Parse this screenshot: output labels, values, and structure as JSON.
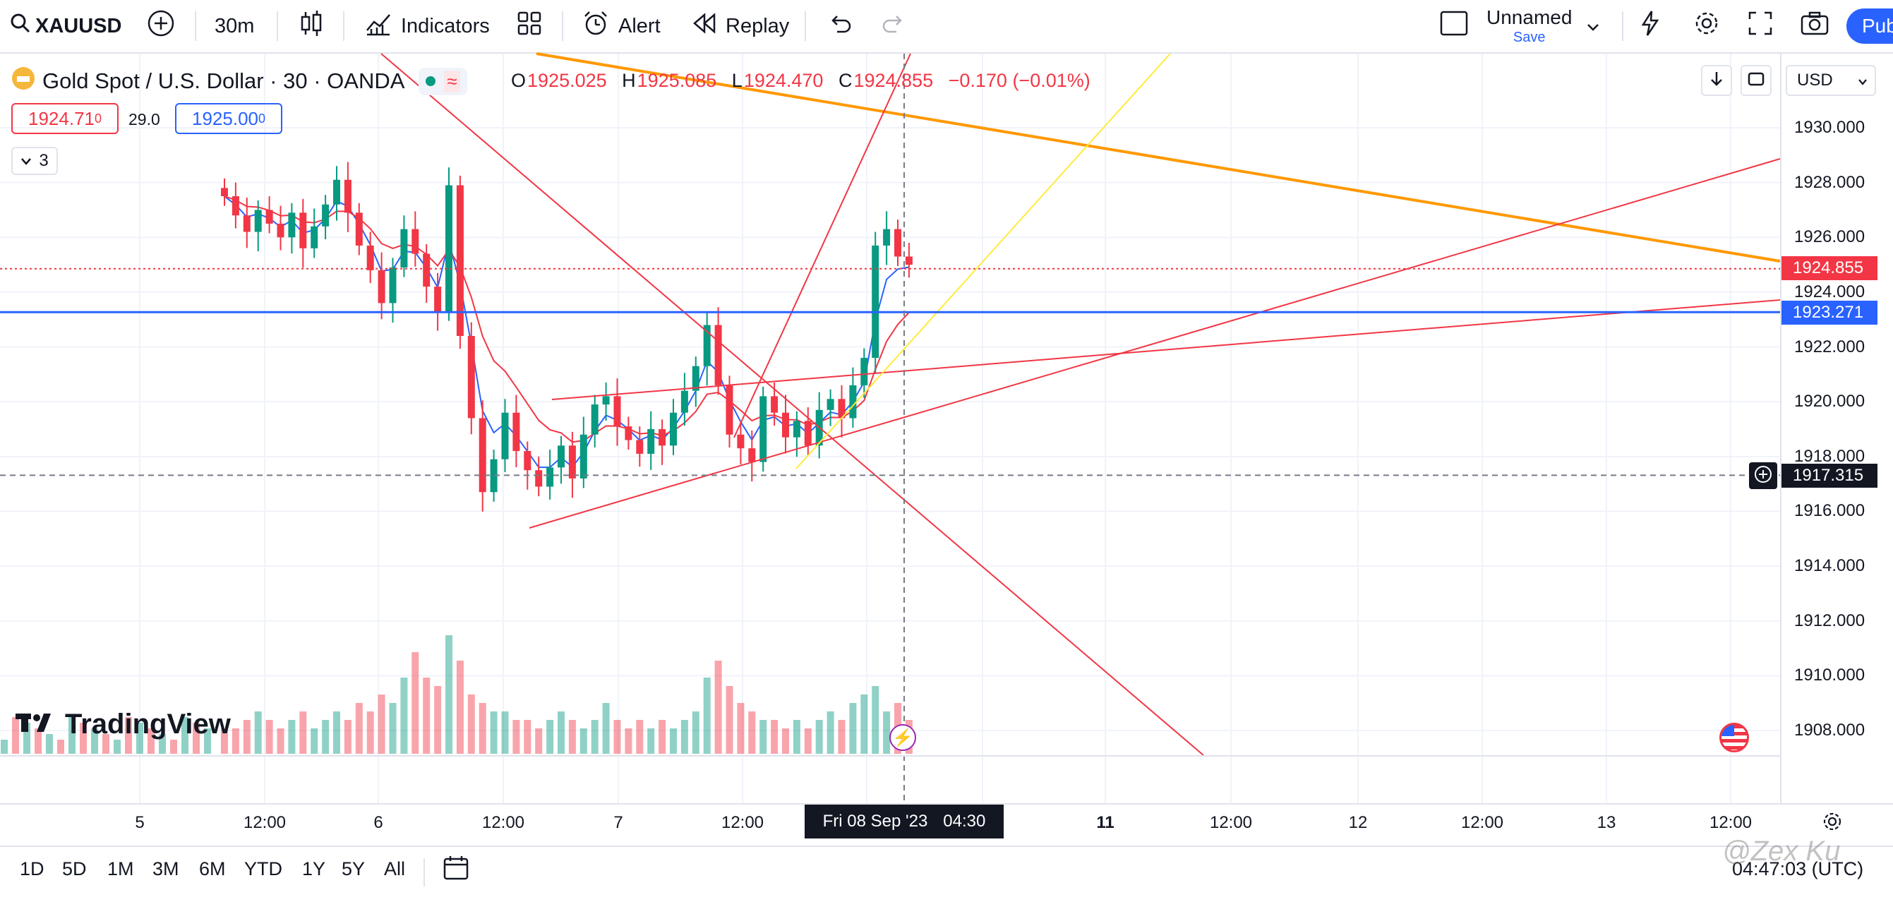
{
  "toolbar": {
    "symbol": "XAUUSD",
    "interval": "30m",
    "indicators_label": "Indicators",
    "alert_label": "Alert",
    "replay_label": "Replay",
    "layout_name": "Unnamed",
    "layout_save": "Save",
    "publish_label": "Pub"
  },
  "legend": {
    "title": "Gold Spot / U.S. Dollar · 30 · OANDA",
    "o_key": "O",
    "o_val": "1925.025",
    "h_key": "H",
    "h_val": "1925.085",
    "l_key": "L",
    "l_val": "1924.470",
    "c_key": "C",
    "c_val": "1924.855",
    "change": "−0.170 (−0.01%)",
    "sell_price": "1924.71",
    "sell_sup": "0",
    "spread": "29.0",
    "buy_price": "1925.00",
    "buy_sup": "0",
    "collapse_count": "3"
  },
  "currency": "USD",
  "price_axis": {
    "labels": [
      "1930.000",
      "1928.000",
      "1926.000",
      "1924.000",
      "1922.000",
      "1920.000",
      "1918.000",
      "1916.000",
      "1914.000",
      "1912.000",
      "1910.000",
      "1908.000"
    ],
    "current_price": "1924.855",
    "hline_price": "1923.271",
    "crosshair_price": "1917.315"
  },
  "time_axis": {
    "labels": [
      "5",
      "12:00",
      "6",
      "12:00",
      "7",
      "12:00",
      "11",
      "12:00",
      "12",
      "12:00",
      "13",
      "12:00"
    ],
    "crosshair_label": "Fri 08 Sep '23",
    "crosshair_time": "04:30"
  },
  "branding": "TradingView",
  "ranges": [
    "1D",
    "5D",
    "1M",
    "3M",
    "6M",
    "YTD",
    "1Y",
    "5Y",
    "All"
  ],
  "clock": "04:47:03 (UTC)",
  "watermark": "@Zex Ku",
  "colors": {
    "up": "#089981",
    "down": "#f23645",
    "blue": "#2962ff",
    "orange": "#ff9800",
    "yellow": "#ffeb3b",
    "red_line": "#f23645"
  },
  "chart_data": {
    "type": "candlestick",
    "symbol": "XAUUSD",
    "interval": "30m",
    "ylim": [
      1907,
      1931
    ],
    "last_price": 1924.855,
    "horizontal_line": 1923.271,
    "crosshair_price": 1917.315,
    "candles_close_path": [
      1927.5,
      1926.8,
      1926.2,
      1927.0,
      1926.5,
      1926.0,
      1926.9,
      1925.6,
      1926.4,
      1927.2,
      1928.1,
      1926.9,
      1925.7,
      1924.8,
      1923.6,
      1924.9,
      1926.3,
      1925.4,
      1924.2,
      1923.3,
      1927.9,
      1922.4,
      1919.4,
      1916.7,
      1917.9,
      1919.6,
      1918.2,
      1917.5,
      1916.9,
      1917.6,
      1918.4,
      1917.2,
      1918.8,
      1919.9,
      1920.2,
      1919.1,
      1918.6,
      1918.1,
      1919.0,
      1918.4,
      1919.6,
      1920.4,
      1921.3,
      1922.8,
      1920.6,
      1918.8,
      1918.3,
      1917.8,
      1920.2,
      1919.6,
      1918.7,
      1919.3,
      1918.4,
      1919.7,
      1920.1,
      1919.4,
      1920.6,
      1921.6,
      1925.7,
      1926.3,
      1925.3,
      1925.0
    ],
    "volume_path": [
      3,
      3,
      4,
      5,
      4,
      3,
      4,
      5,
      3,
      4,
      5,
      4,
      6,
      5,
      7,
      6,
      9,
      12,
      9,
      8,
      14,
      11,
      7,
      6,
      5,
      5,
      4,
      4,
      3,
      4,
      5,
      4,
      3,
      4,
      6,
      4,
      3,
      4,
      3,
      4,
      3,
      4,
      5,
      9,
      11,
      8,
      6,
      5,
      4,
      4,
      3,
      4,
      3,
      4,
      5,
      4,
      6,
      7,
      8,
      5,
      6,
      4
    ]
  }
}
